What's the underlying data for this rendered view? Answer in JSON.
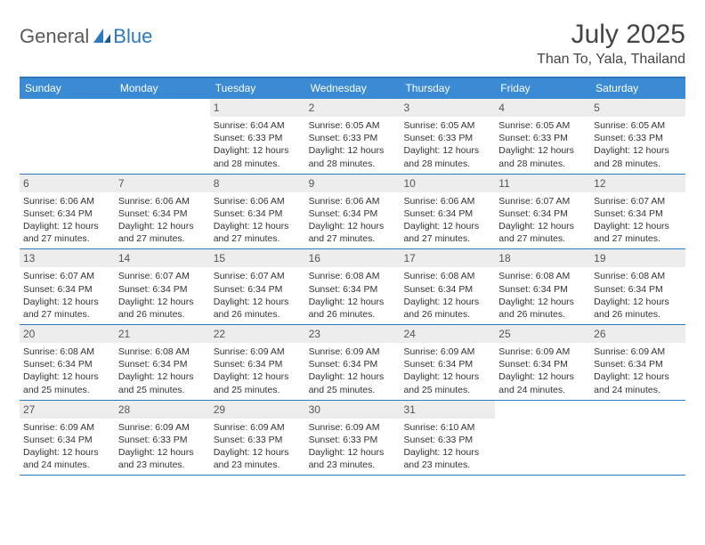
{
  "brand": {
    "part1": "General",
    "part2": "Blue"
  },
  "title": "July 2025",
  "location": "Than To, Yala, Thailand",
  "colors": {
    "header_bg": "#3b8bd4",
    "border": "#2e78c0",
    "daynum_bg": "#ededed",
    "text": "#333333",
    "brand_gray": "#5a5a5a",
    "brand_blue": "#2e78c0"
  },
  "dow": [
    "Sunday",
    "Monday",
    "Tuesday",
    "Wednesday",
    "Thursday",
    "Friday",
    "Saturday"
  ],
  "weeks": [
    [
      {
        "n": "",
        "t": ""
      },
      {
        "n": "",
        "t": ""
      },
      {
        "n": "1",
        "t": "Sunrise: 6:04 AM\nSunset: 6:33 PM\nDaylight: 12 hours and 28 minutes."
      },
      {
        "n": "2",
        "t": "Sunrise: 6:05 AM\nSunset: 6:33 PM\nDaylight: 12 hours and 28 minutes."
      },
      {
        "n": "3",
        "t": "Sunrise: 6:05 AM\nSunset: 6:33 PM\nDaylight: 12 hours and 28 minutes."
      },
      {
        "n": "4",
        "t": "Sunrise: 6:05 AM\nSunset: 6:33 PM\nDaylight: 12 hours and 28 minutes."
      },
      {
        "n": "5",
        "t": "Sunrise: 6:05 AM\nSunset: 6:33 PM\nDaylight: 12 hours and 28 minutes."
      }
    ],
    [
      {
        "n": "6",
        "t": "Sunrise: 6:06 AM\nSunset: 6:34 PM\nDaylight: 12 hours and 27 minutes."
      },
      {
        "n": "7",
        "t": "Sunrise: 6:06 AM\nSunset: 6:34 PM\nDaylight: 12 hours and 27 minutes."
      },
      {
        "n": "8",
        "t": "Sunrise: 6:06 AM\nSunset: 6:34 PM\nDaylight: 12 hours and 27 minutes."
      },
      {
        "n": "9",
        "t": "Sunrise: 6:06 AM\nSunset: 6:34 PM\nDaylight: 12 hours and 27 minutes."
      },
      {
        "n": "10",
        "t": "Sunrise: 6:06 AM\nSunset: 6:34 PM\nDaylight: 12 hours and 27 minutes."
      },
      {
        "n": "11",
        "t": "Sunrise: 6:07 AM\nSunset: 6:34 PM\nDaylight: 12 hours and 27 minutes."
      },
      {
        "n": "12",
        "t": "Sunrise: 6:07 AM\nSunset: 6:34 PM\nDaylight: 12 hours and 27 minutes."
      }
    ],
    [
      {
        "n": "13",
        "t": "Sunrise: 6:07 AM\nSunset: 6:34 PM\nDaylight: 12 hours and 27 minutes."
      },
      {
        "n": "14",
        "t": "Sunrise: 6:07 AM\nSunset: 6:34 PM\nDaylight: 12 hours and 26 minutes."
      },
      {
        "n": "15",
        "t": "Sunrise: 6:07 AM\nSunset: 6:34 PM\nDaylight: 12 hours and 26 minutes."
      },
      {
        "n": "16",
        "t": "Sunrise: 6:08 AM\nSunset: 6:34 PM\nDaylight: 12 hours and 26 minutes."
      },
      {
        "n": "17",
        "t": "Sunrise: 6:08 AM\nSunset: 6:34 PM\nDaylight: 12 hours and 26 minutes."
      },
      {
        "n": "18",
        "t": "Sunrise: 6:08 AM\nSunset: 6:34 PM\nDaylight: 12 hours and 26 minutes."
      },
      {
        "n": "19",
        "t": "Sunrise: 6:08 AM\nSunset: 6:34 PM\nDaylight: 12 hours and 26 minutes."
      }
    ],
    [
      {
        "n": "20",
        "t": "Sunrise: 6:08 AM\nSunset: 6:34 PM\nDaylight: 12 hours and 25 minutes."
      },
      {
        "n": "21",
        "t": "Sunrise: 6:08 AM\nSunset: 6:34 PM\nDaylight: 12 hours and 25 minutes."
      },
      {
        "n": "22",
        "t": "Sunrise: 6:09 AM\nSunset: 6:34 PM\nDaylight: 12 hours and 25 minutes."
      },
      {
        "n": "23",
        "t": "Sunrise: 6:09 AM\nSunset: 6:34 PM\nDaylight: 12 hours and 25 minutes."
      },
      {
        "n": "24",
        "t": "Sunrise: 6:09 AM\nSunset: 6:34 PM\nDaylight: 12 hours and 25 minutes."
      },
      {
        "n": "25",
        "t": "Sunrise: 6:09 AM\nSunset: 6:34 PM\nDaylight: 12 hours and 24 minutes."
      },
      {
        "n": "26",
        "t": "Sunrise: 6:09 AM\nSunset: 6:34 PM\nDaylight: 12 hours and 24 minutes."
      }
    ],
    [
      {
        "n": "27",
        "t": "Sunrise: 6:09 AM\nSunset: 6:34 PM\nDaylight: 12 hours and 24 minutes."
      },
      {
        "n": "28",
        "t": "Sunrise: 6:09 AM\nSunset: 6:33 PM\nDaylight: 12 hours and 23 minutes."
      },
      {
        "n": "29",
        "t": "Sunrise: 6:09 AM\nSunset: 6:33 PM\nDaylight: 12 hours and 23 minutes."
      },
      {
        "n": "30",
        "t": "Sunrise: 6:09 AM\nSunset: 6:33 PM\nDaylight: 12 hours and 23 minutes."
      },
      {
        "n": "31",
        "t": "Sunrise: 6:10 AM\nSunset: 6:33 PM\nDaylight: 12 hours and 23 minutes."
      },
      {
        "n": "",
        "t": ""
      },
      {
        "n": "",
        "t": ""
      }
    ]
  ]
}
